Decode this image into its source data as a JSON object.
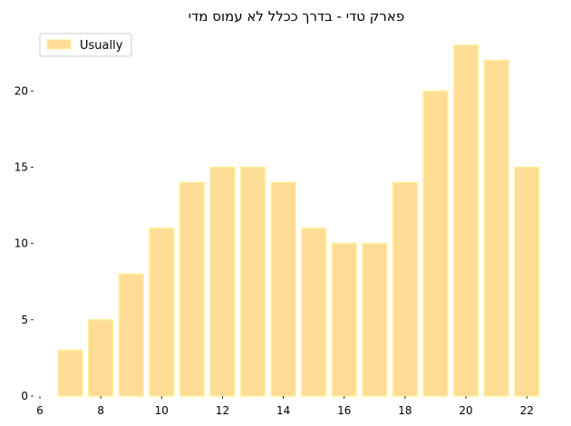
{
  "chart_data": {
    "type": "bar",
    "title": "פארק טדי - בדרך ככלל לא עמוס מדי",
    "xlabel": "",
    "ylabel": "",
    "x": [
      7,
      8,
      9,
      10,
      11,
      12,
      13,
      14,
      15,
      16,
      17,
      18,
      19,
      20,
      21,
      22
    ],
    "series": [
      {
        "name": "Usually",
        "values": [
          3,
          5,
          8,
          11,
          14,
          15,
          15,
          14,
          11,
          10,
          10,
          14,
          20,
          23,
          22,
          15
        ]
      }
    ],
    "xlim": [
      6,
      22.5
    ],
    "ylim": [
      0,
      24
    ],
    "xticks": [
      6,
      8,
      10,
      12,
      14,
      16,
      18,
      20,
      22
    ],
    "yticks": [
      0,
      5,
      10,
      15,
      20
    ],
    "bar_fill": "#fddc96",
    "bar_edge": "#fff29a",
    "grid": false,
    "legend_position": "top-left"
  }
}
